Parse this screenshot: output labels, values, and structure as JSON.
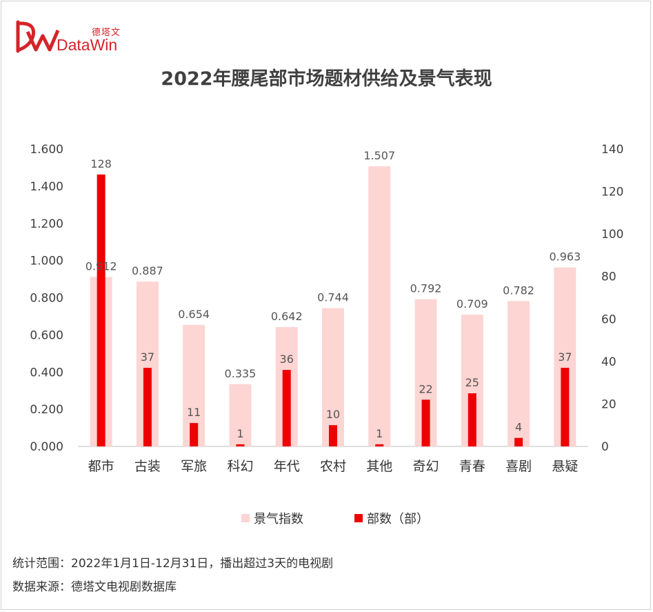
{
  "brand": {
    "cn": "德塔文",
    "en": "DataWin"
  },
  "colors": {
    "index_bar": "#fdd5d3",
    "count_bar": "#ee0000",
    "brand": "#d5232a"
  },
  "legend": {
    "index_label": "景气指数",
    "count_label": "部数（部）"
  },
  "notes": [
    "统计范围：2022年1月1日-12月31日，播出超过3天的电视剧",
    "数据来源：德塔文电视剧数据库"
  ],
  "chart_data": {
    "type": "bar",
    "title": "2022年腰尾部市场题材供给及景气表现",
    "categories": [
      "都市",
      "古装",
      "军旅",
      "科幻",
      "年代",
      "农村",
      "其他",
      "奇幻",
      "青春",
      "喜剧",
      "悬疑"
    ],
    "series": [
      {
        "name": "景气指数",
        "axis": "left",
        "values": [
          0.912,
          0.887,
          0.654,
          0.335,
          0.642,
          0.744,
          1.507,
          0.792,
          0.709,
          0.782,
          0.963
        ],
        "labels": [
          "0.912",
          "0.887",
          "0.654",
          "0.335",
          "0.642",
          "0.744",
          "1.507",
          "0.792",
          "0.709",
          "0.782",
          "0.963"
        ]
      },
      {
        "name": "部数（部）",
        "axis": "right",
        "values": [
          128,
          37,
          11,
          1,
          36,
          10,
          1,
          22,
          25,
          4,
          37
        ],
        "labels": [
          "128",
          "37",
          "11",
          "1",
          "36",
          "10",
          "1",
          "22",
          "25",
          "4",
          "37"
        ]
      }
    ],
    "y_left": {
      "min": 0,
      "max": 1.6,
      "ticks": [
        "0.000",
        "0.200",
        "0.400",
        "0.600",
        "0.800",
        "1.000",
        "1.200",
        "1.400",
        "1.600"
      ]
    },
    "y_right": {
      "min": 0,
      "max": 140,
      "ticks": [
        "0",
        "20",
        "40",
        "60",
        "80",
        "100",
        "120",
        "140"
      ]
    },
    "grid": false,
    "legend_position": "bottom"
  }
}
